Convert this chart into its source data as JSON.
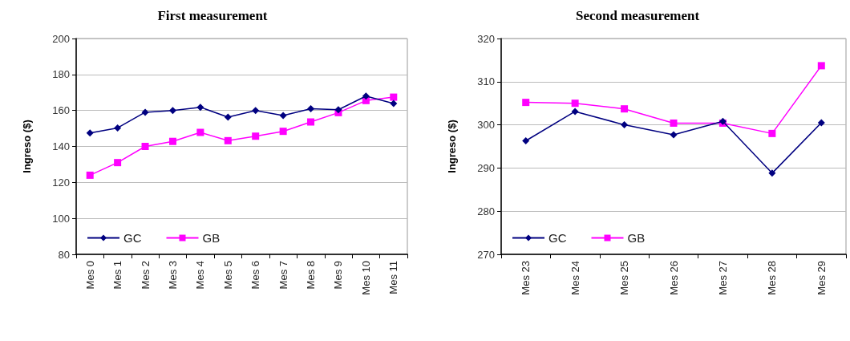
{
  "chart_data": [
    {
      "type": "line",
      "title": "First measurement",
      "ylabel": "Ingreso ($)",
      "categories": [
        "Mes 0",
        "Mes 1",
        "Mes 2",
        "Mes 3",
        "Mes 4",
        "Mes 5",
        "Mes 6",
        "Mes 7",
        "Mes 8",
        "Mes 9",
        "Mes 10",
        "Mes 11"
      ],
      "series": [
        {
          "name": "GC",
          "color": "#000080",
          "marker": "diamond",
          "values": [
            147.5,
            150.3,
            159,
            160,
            161.8,
            156.3,
            160,
            157.2,
            161,
            160.4,
            168,
            163.9
          ]
        },
        {
          "name": "GB",
          "color": "#ff00ff",
          "marker": "square",
          "values": [
            124,
            131,
            140,
            142.8,
            147.8,
            143.2,
            145.7,
            148.4,
            153.6,
            158.8,
            165.5,
            167.4
          ]
        }
      ],
      "ylim": [
        80,
        200
      ],
      "yticks": [
        80,
        100,
        120,
        140,
        160,
        180,
        200
      ],
      "grid": "y",
      "legend": "bottom left"
    },
    {
      "type": "line",
      "title": "Second measurement",
      "ylabel": "Ingreso ($)",
      "categories": [
        "Mes 23",
        "Mes 24",
        "Mes 25",
        "Mes 26",
        "Mes 27",
        "Mes 28",
        "Mes 29"
      ],
      "series": [
        {
          "name": "GC",
          "color": "#000080",
          "marker": "diamond",
          "values": [
            296.3,
            303.1,
            300,
            297.7,
            300.8,
            288.8,
            300.5
          ]
        },
        {
          "name": "GB",
          "color": "#ff00ff",
          "marker": "square",
          "values": [
            305.2,
            305,
            303.7,
            300.4,
            300.4,
            298,
            313.7
          ]
        }
      ],
      "ylim": [
        270,
        320
      ],
      "yticks": [
        270,
        280,
        290,
        300,
        310,
        320
      ],
      "grid": "y",
      "legend": "bottom left"
    }
  ]
}
